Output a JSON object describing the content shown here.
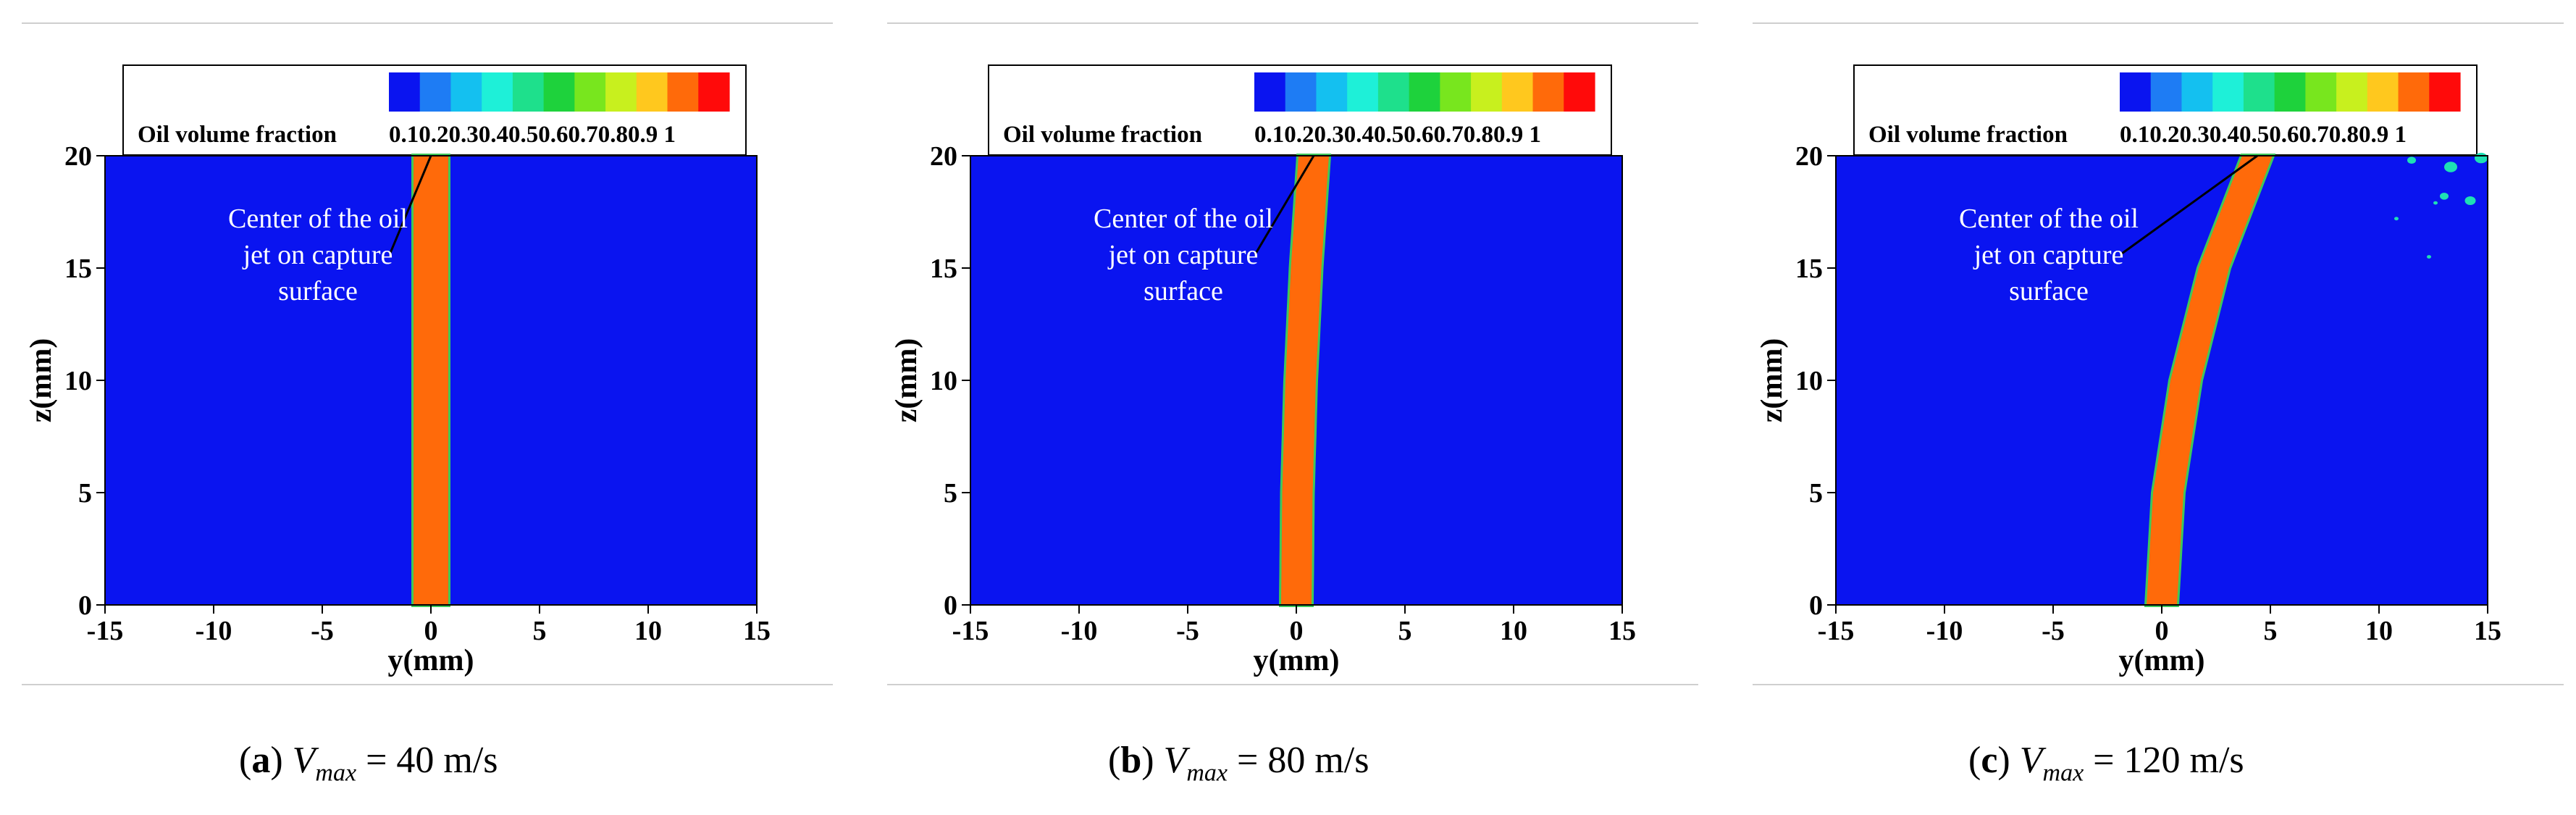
{
  "colors": {
    "background_fluid": "#0a14f0",
    "jet_core": "#ff6a0a",
    "jet_edge": "#3ec85a",
    "colormap": [
      "#0a14f0",
      "#1e7cf4",
      "#14c0f0",
      "#1ef0d8",
      "#1ee08c",
      "#1ed23c",
      "#78e61e",
      "#c8f01e",
      "#ffc81e",
      "#ff6a0a",
      "#ff0a0a"
    ]
  },
  "panels": [
    {
      "label": "a",
      "vmax_symbol": "V",
      "vmax_sub": "max",
      "caption_value": "= 40 m/s",
      "legend_title": "Oil volume fraction",
      "legend_ticks": "0.10.20.30.40.50.60.70.80.9  1",
      "annotation": [
        "Center of the oil",
        "jet on capture",
        "surface"
      ]
    },
    {
      "label": "b",
      "vmax_symbol": "V",
      "vmax_sub": "max",
      "caption_value": "= 80 m/s",
      "legend_title": "Oil volume fraction",
      "legend_ticks": "0.10.20.30.40.50.60.70.80.9  1",
      "annotation": [
        "Center of the oil",
        "jet on capture",
        "surface"
      ]
    },
    {
      "label": "c",
      "vmax_symbol": "V",
      "vmax_sub": "max",
      "caption_value": "= 120 m/s",
      "legend_title": "Oil volume fraction",
      "legend_ticks": "0.10.20.30.40.50.60.70.80.9  1",
      "annotation": [
        "Center of the oil",
        "jet on capture",
        "surface"
      ]
    }
  ],
  "chart_data": [
    {
      "type": "heatmap",
      "title": "Oil volume fraction",
      "xlabel": "y(mm)",
      "ylabel": "z(mm)",
      "xlim": [
        -15,
        15
      ],
      "ylim": [
        0,
        20
      ],
      "xticks": [
        -15,
        -10,
        -5,
        0,
        5,
        10,
        15
      ],
      "yticks": [
        0,
        5,
        10,
        15,
        20
      ],
      "colorbar_ticks": [
        0.1,
        0.2,
        0.3,
        0.4,
        0.5,
        0.6,
        0.7,
        0.8,
        0.9,
        1
      ],
      "jet_center": {
        "z": [
          0,
          5,
          10,
          15,
          20
        ],
        "y": [
          0,
          0,
          0,
          0,
          0
        ]
      },
      "jet_width_mm": 1.6,
      "capture_center_y": 0,
      "droplets": []
    },
    {
      "type": "heatmap",
      "title": "Oil volume fraction",
      "xlabel": "y(mm)",
      "ylabel": "z(mm)",
      "xlim": [
        -15,
        15
      ],
      "ylim": [
        0,
        20
      ],
      "xticks": [
        -15,
        -10,
        -5,
        0,
        5,
        10,
        15
      ],
      "yticks": [
        0,
        5,
        10,
        15,
        20
      ],
      "colorbar_ticks": [
        0.1,
        0.2,
        0.3,
        0.4,
        0.5,
        0.6,
        0.7,
        0.8,
        0.9,
        1
      ],
      "jet_center": {
        "z": [
          0,
          5,
          10,
          15,
          20
        ],
        "y": [
          0,
          0.05,
          0.2,
          0.45,
          0.8
        ]
      },
      "jet_width_mm": 1.4,
      "capture_center_y": 0.8,
      "droplets": []
    },
    {
      "type": "heatmap",
      "title": "Oil volume fraction",
      "xlabel": "y(mm)",
      "ylabel": "z(mm)",
      "xlim": [
        -15,
        15
      ],
      "ylim": [
        0,
        20
      ],
      "xticks": [
        -15,
        -10,
        -5,
        0,
        5,
        10,
        15
      ],
      "yticks": [
        0,
        5,
        10,
        15,
        20
      ],
      "colorbar_ticks": [
        0.1,
        0.2,
        0.3,
        0.4,
        0.5,
        0.6,
        0.7,
        0.8,
        0.9,
        1
      ],
      "jet_center": {
        "z": [
          0,
          5,
          10,
          15,
          20
        ],
        "y": [
          0,
          0.3,
          1.1,
          2.4,
          4.4
        ]
      },
      "jet_width_mm": 1.4,
      "capture_center_y": 4.4,
      "droplets": [
        {
          "y": 11.5,
          "z": 19.8,
          "r": 0.2
        },
        {
          "y": 13.3,
          "z": 19.5,
          "r": 0.3
        },
        {
          "y": 14.7,
          "z": 19.9,
          "r": 0.3
        },
        {
          "y": 13.0,
          "z": 18.2,
          "r": 0.2
        },
        {
          "y": 14.2,
          "z": 18.0,
          "r": 0.25
        },
        {
          "y": 12.6,
          "z": 17.9,
          "r": 0.1
        },
        {
          "y": 10.8,
          "z": 17.2,
          "r": 0.08
        },
        {
          "y": 12.3,
          "z": 15.5,
          "r": 0.06
        }
      ]
    }
  ]
}
